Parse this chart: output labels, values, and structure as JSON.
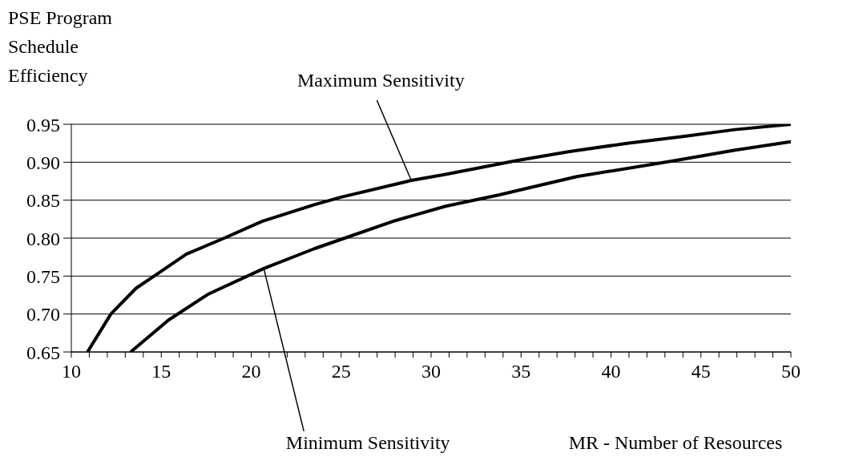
{
  "chart_data": {
    "type": "line",
    "ylabel": "PSE Program Schedule Efficiency",
    "xlabel": "MR - Number of Resources",
    "xlim": [
      10,
      50
    ],
    "ylim": [
      0.65,
      0.95
    ],
    "xticks": [
      10,
      {
        "value": 11,
        "label": null
      },
      {
        "value": 12,
        "label": null
      },
      {
        "value": 13,
        "label": null
      },
      {
        "value": 14,
        "label": null
      },
      15,
      {
        "value": 16,
        "label": null
      },
      {
        "value": 17,
        "label": null
      },
      {
        "value": 18,
        "label": null
      },
      {
        "value": 19,
        "label": null
      },
      20,
      {
        "value": 21,
        "label": null
      },
      {
        "value": 22,
        "label": null
      },
      {
        "value": 23,
        "label": null
      },
      {
        "value": 24,
        "label": null
      },
      25,
      {
        "value": 26,
        "label": null
      },
      {
        "value": 27,
        "label": null
      },
      {
        "value": 28,
        "label": null
      },
      {
        "value": 29,
        "label": null
      },
      30,
      {
        "value": 31,
        "label": null
      },
      {
        "value": 32,
        "label": null
      },
      {
        "value": 33,
        "label": null
      },
      {
        "value": 34,
        "label": null
      },
      35,
      {
        "value": 36,
        "label": null
      },
      {
        "value": 37,
        "label": null
      },
      {
        "value": 38,
        "label": null
      },
      {
        "value": 39,
        "label": null
      },
      40,
      {
        "value": 41,
        "label": null
      },
      {
        "value": 42,
        "label": null
      },
      {
        "value": 43,
        "label": null
      },
      {
        "value": 44,
        "label": null
      },
      45,
      {
        "value": 46,
        "label": null
      },
      {
        "value": 47,
        "label": null
      },
      {
        "value": 48,
        "label": null
      },
      {
        "value": 49,
        "label": null
      },
      50
    ],
    "yticks": [
      {
        "value": 0.65,
        "label": "0.65"
      },
      {
        "value": 0.7,
        "label": "0.70"
      },
      {
        "value": 0.75,
        "label": "0.75"
      },
      {
        "value": 0.8,
        "label": "0.80"
      },
      {
        "value": 0.85,
        "label": "0.85"
      },
      {
        "value": 0.9,
        "label": "0.90"
      },
      {
        "value": 0.95,
        "label": "0.95"
      }
    ],
    "grid": "y",
    "marker": "none",
    "line_style": "solid",
    "series": [
      {
        "color": "#000000",
        "x": [
          10.9,
          12.2,
          13.6,
          14.6,
          16.4,
          18.5,
          20.6,
          23.5,
          25,
          28.9,
          30.8,
          34.7,
          37.7,
          40.9,
          44,
          46.9,
          50
        ],
        "values": [
          0.65,
          0.7,
          0.734,
          0.75,
          0.779,
          0.8,
          0.822,
          0.844,
          0.854,
          0.876,
          0.884,
          0.902,
          0.914,
          0.925,
          0.934,
          0.943,
          0.95
        ]
      },
      {
        "color": "#000000",
        "x": [
          13.3,
          15.4,
          17.6,
          20.7,
          23.5,
          25.2,
          28,
          30.8,
          33.8,
          38.1,
          43.5,
          46.9,
          50
        ],
        "values": [
          0.65,
          0.692,
          0.726,
          0.76,
          0.786,
          0.8,
          0.823,
          0.842,
          0.857,
          0.881,
          0.902,
          0.916,
          0.927
        ]
      }
    ],
    "annotations": [
      {
        "text": "Maximum Sensitivity",
        "x": 28.9,
        "y": 0.876
      },
      {
        "text": "Minimum Sensitivity",
        "x": 20.7,
        "y": 0.76
      }
    ]
  }
}
